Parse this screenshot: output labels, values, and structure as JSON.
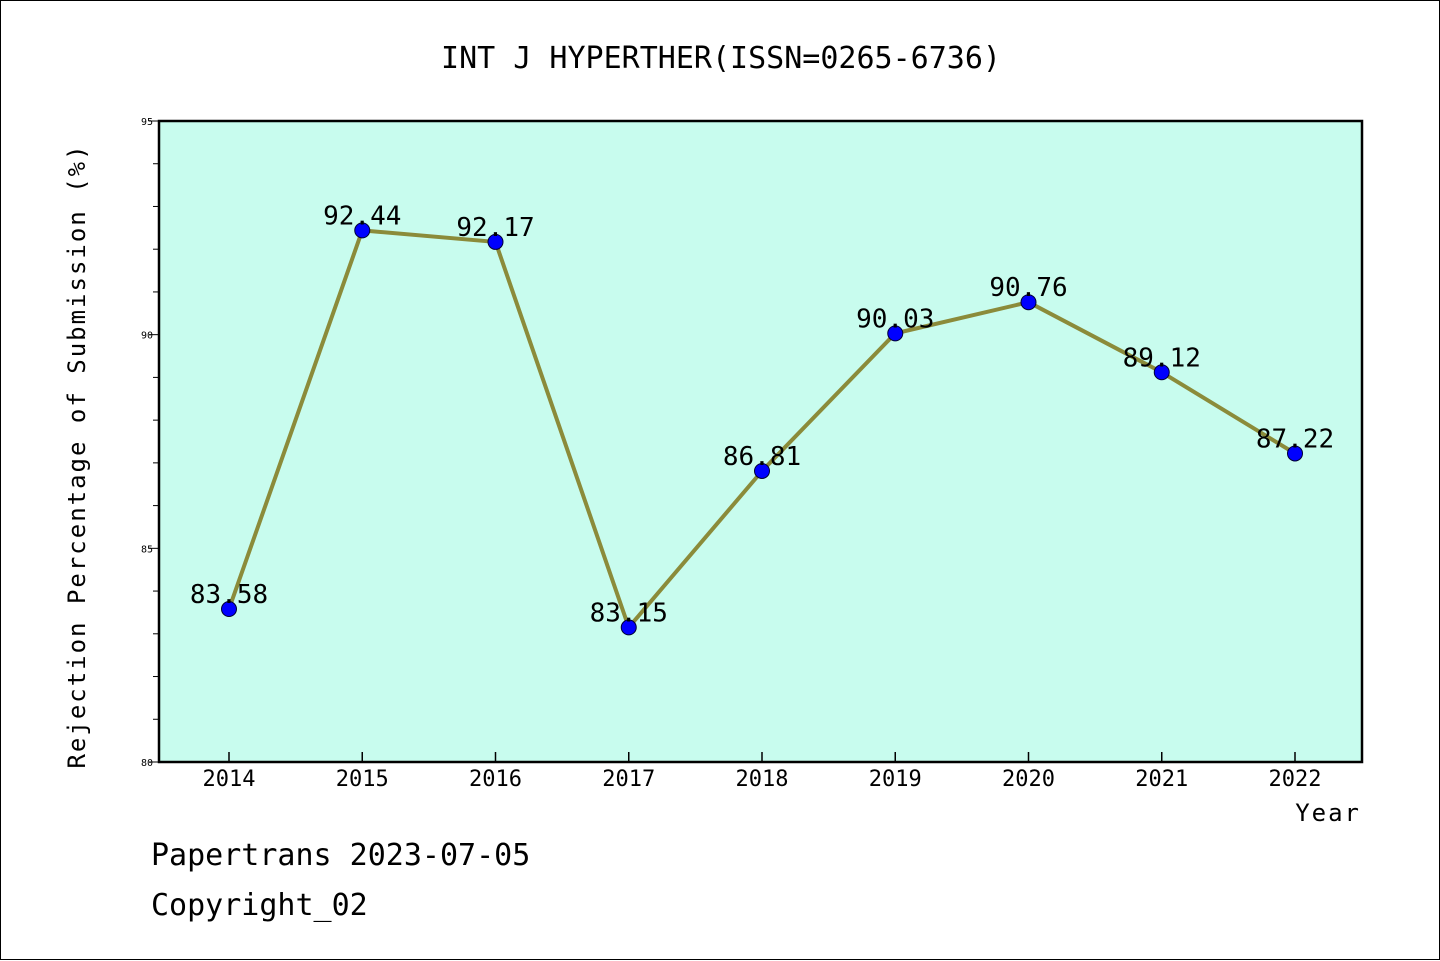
{
  "colors": {
    "plot_background": "#c8fcee",
    "line": "#8b8b3a",
    "marker": "#0000ff",
    "axis": "#000000"
  },
  "chart_data": {
    "type": "line",
    "title": "INT J HYPERTHER(ISSN=0265-6736)",
    "xlabel": "Year",
    "ylabel": "Rejection Percentage of Submission (%)",
    "categories": [
      "2014",
      "2015",
      "2016",
      "2017",
      "2018",
      "2019",
      "2020",
      "2021",
      "2022"
    ],
    "series": [
      {
        "values": [
          83.58,
          92.44,
          92.17,
          83.15,
          86.81,
          90.03,
          90.76,
          89.12,
          87.22
        ],
        "labels": [
          "83.58",
          "92.44",
          "92.17",
          "83.15",
          "86.81",
          "90.03",
          "90.76",
          "89.12",
          "87.22"
        ]
      }
    ],
    "ylim": [
      80,
      95
    ],
    "yticks": [
      "80",
      "85",
      "90",
      "95"
    ],
    "grid": false,
    "legend": "none"
  },
  "footer": {
    "line1": "Papertrans 2023-07-05",
    "line2": "Copyright_02"
  }
}
